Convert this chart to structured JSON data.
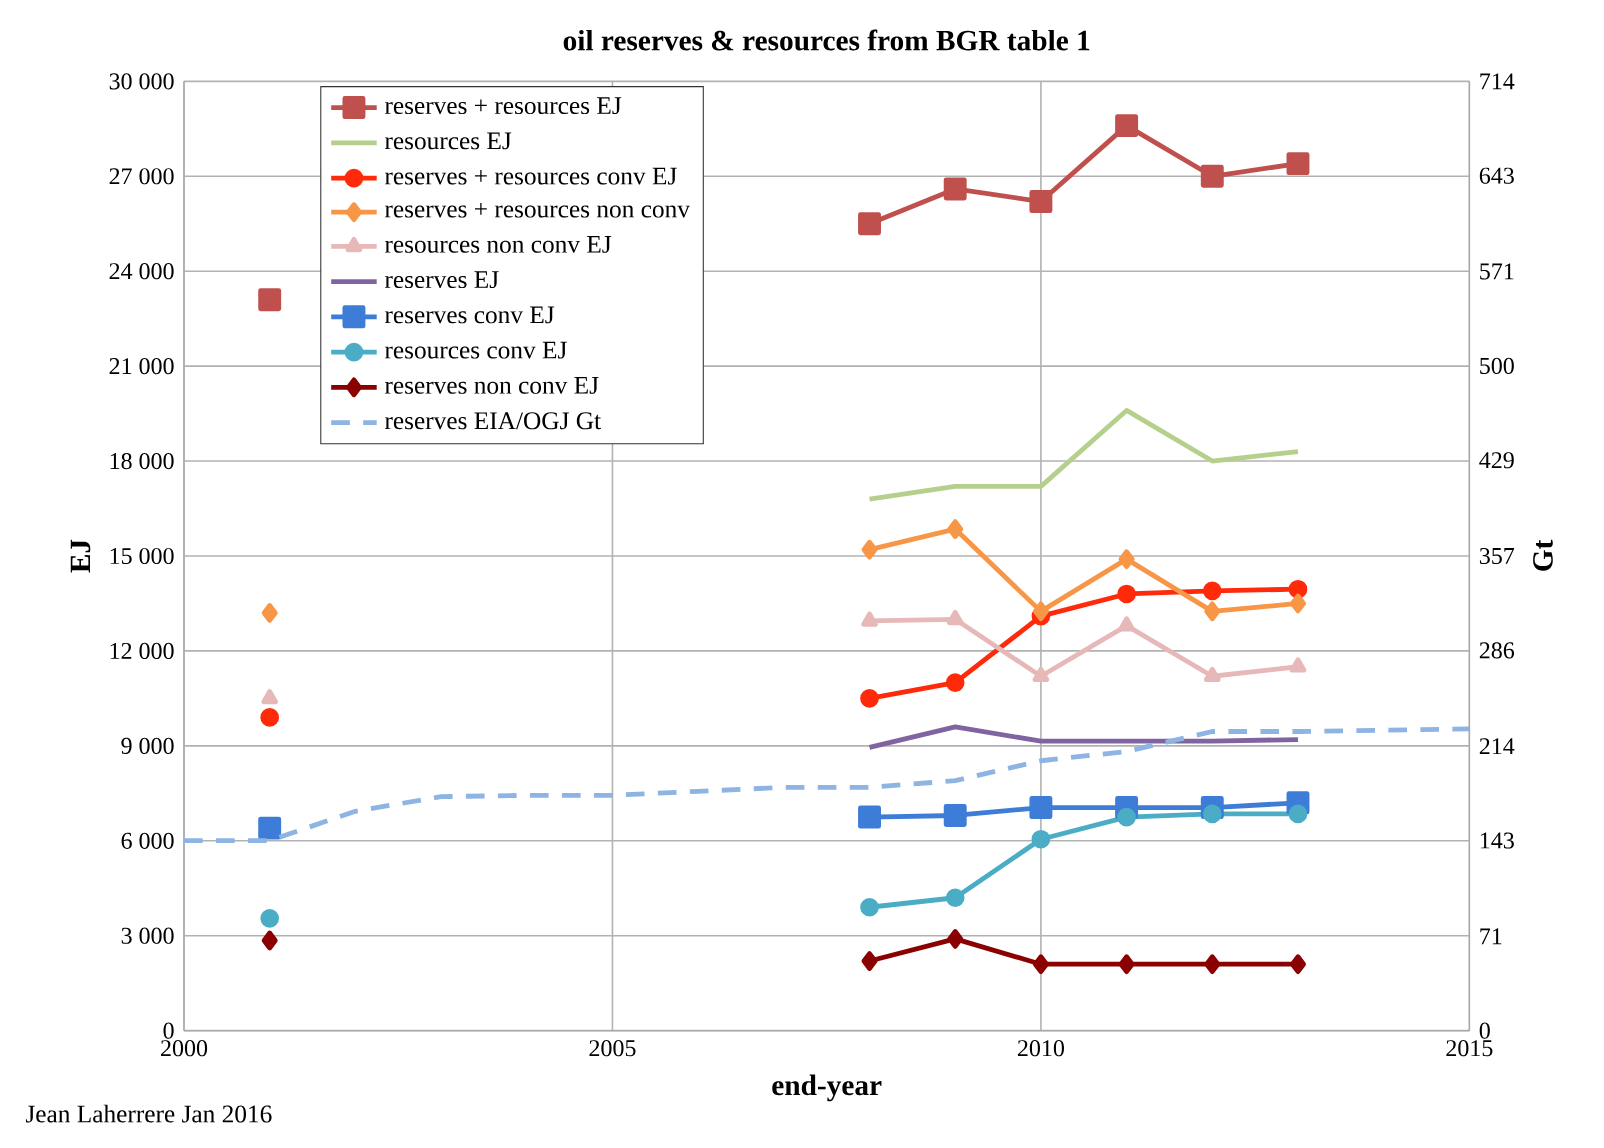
{
  "chart_data": {
    "type": "line",
    "title": "oil reserves & resources from BGR table 1",
    "xlabel": "end-year",
    "ylabel": "EJ",
    "y2label": "Gt",
    "x": [
      2000,
      2001,
      2002,
      2003,
      2004,
      2005,
      2006,
      2007,
      2008,
      2009,
      2010,
      2011,
      2012,
      2013,
      2014,
      2015
    ],
    "xlim": [
      2000,
      2015
    ],
    "xticks": [
      2000,
      2005,
      2010,
      2015
    ],
    "ylim": [
      0,
      30000
    ],
    "yticks": [
      {
        "value": 0,
        "label": "0"
      },
      {
        "value": 3000,
        "label": "3 000"
      },
      {
        "value": 6000,
        "label": "6 000"
      },
      {
        "value": 9000,
        "label": "9 000"
      },
      {
        "value": 12000,
        "label": "12 000"
      },
      {
        "value": 15000,
        "label": "15 000"
      },
      {
        "value": 18000,
        "label": "18 000"
      },
      {
        "value": 21000,
        "label": "21 000"
      },
      {
        "value": 24000,
        "label": "24 000"
      },
      {
        "value": 27000,
        "label": "27 000"
      },
      {
        "value": 30000,
        "label": "30 000"
      }
    ],
    "y2lim": [
      0,
      714
    ],
    "y2ticks": [
      0,
      71,
      143,
      214,
      286,
      357,
      429,
      500,
      571,
      643,
      714
    ],
    "grid": true,
    "legend": "top left",
    "series": [
      {
        "name": "reserves + resources EJ",
        "color": "#c0504d",
        "marker": "square",
        "values": [
          null,
          23100,
          null,
          null,
          null,
          null,
          null,
          null,
          25500,
          26600,
          26200,
          28600,
          27000,
          27400,
          null,
          null
        ]
      },
      {
        "name": "resources EJ",
        "color": "#b5cf8c",
        "marker": "none",
        "values": [
          null,
          null,
          null,
          null,
          null,
          null,
          null,
          null,
          16800,
          17200,
          17200,
          19600,
          18000,
          18300,
          null,
          null
        ]
      },
      {
        "name": "reserves + resources conv  EJ",
        "color": "#ff2a0a",
        "marker": "circle",
        "values": [
          null,
          9900,
          null,
          null,
          null,
          null,
          null,
          null,
          10500,
          11000,
          13100,
          13800,
          13900,
          13950,
          null,
          null
        ]
      },
      {
        "name": "reserves + resources non conv",
        "color": "#f79646",
        "marker": "diamond",
        "values": [
          null,
          13200,
          null,
          null,
          null,
          null,
          null,
          null,
          15200,
          15850,
          13250,
          14900,
          13250,
          13500,
          null,
          null
        ]
      },
      {
        "name": "resources non conv EJ",
        "color": "#e6b9b8",
        "marker": "triangle",
        "values": [
          null,
          10500,
          null,
          null,
          null,
          null,
          null,
          null,
          12950,
          13000,
          11200,
          12800,
          11200,
          11500,
          null,
          null
        ]
      },
      {
        "name": "reserves EJ",
        "color": "#8064a2",
        "marker": "none",
        "values": [
          null,
          null,
          null,
          null,
          null,
          null,
          null,
          null,
          8950,
          9600,
          9150,
          9150,
          9150,
          9200,
          null,
          null
        ]
      },
      {
        "name": "reserves conv EJ",
        "color": "#3d7dd8",
        "marker": "square",
        "values": [
          null,
          6400,
          null,
          null,
          null,
          null,
          null,
          null,
          6750,
          6800,
          7050,
          7050,
          7050,
          7200,
          null,
          null
        ]
      },
      {
        "name": "resources conv  EJ",
        "color": "#4bacc6",
        "marker": "circle",
        "values": [
          null,
          3550,
          null,
          null,
          null,
          null,
          null,
          null,
          3900,
          4200,
          6050,
          6750,
          6850,
          6850,
          null,
          null
        ]
      },
      {
        "name": "reserves non conv EJ",
        "color": "#8b0000",
        "marker": "diamond",
        "values": [
          null,
          2850,
          null,
          null,
          null,
          null,
          null,
          null,
          2200,
          2900,
          2100,
          2100,
          2100,
          2100,
          null,
          null
        ]
      },
      {
        "name": "reserves EIA/OGJ Gt",
        "color": "#8db4e2",
        "marker": "none",
        "line_style": "dashed",
        "axis": "y2",
        "values": [
          143,
          143,
          165,
          176,
          177,
          177,
          180,
          183,
          183,
          188,
          203,
          210,
          225,
          225,
          226,
          227
        ]
      }
    ],
    "annotations": [
      "Jean Laherrere Jan 2016"
    ]
  }
}
